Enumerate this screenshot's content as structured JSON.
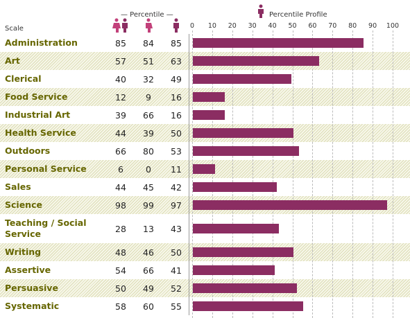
{
  "header": {
    "scale": "Scale",
    "percentile": "— Percentile —",
    "profile": "Percentile Profile"
  },
  "table": {
    "rows": [
      [
        "Administration",
        85,
        84,
        85
      ],
      [
        "Art",
        57,
        51,
        63
      ],
      [
        "Clerical",
        40,
        32,
        49
      ],
      [
        "Food Service",
        12,
        9,
        16
      ],
      [
        "Industrial Art",
        39,
        66,
        16
      ],
      [
        "Health Service",
        44,
        39,
        50
      ],
      [
        "Outdoors",
        66,
        80,
        53
      ],
      [
        "Personal Service",
        6,
        0,
        11
      ],
      [
        "Sales",
        44,
        45,
        42
      ],
      [
        "Science",
        98,
        99,
        97
      ],
      [
        "Teaching / Social Service",
        28,
        13,
        43
      ],
      [
        "Writing",
        48,
        46,
        50
      ],
      [
        "Assertive",
        54,
        66,
        41
      ],
      [
        "Persuasive",
        50,
        49,
        52
      ],
      [
        "Systematic",
        58,
        60,
        55
      ]
    ]
  },
  "profile": {
    "type": "bar",
    "xlim": [
      0,
      100
    ],
    "xticks": [
      0,
      10,
      20,
      30,
      40,
      50,
      60,
      70,
      80,
      90,
      100
    ],
    "color": "#8b2d62",
    "grid": true
  }
}
